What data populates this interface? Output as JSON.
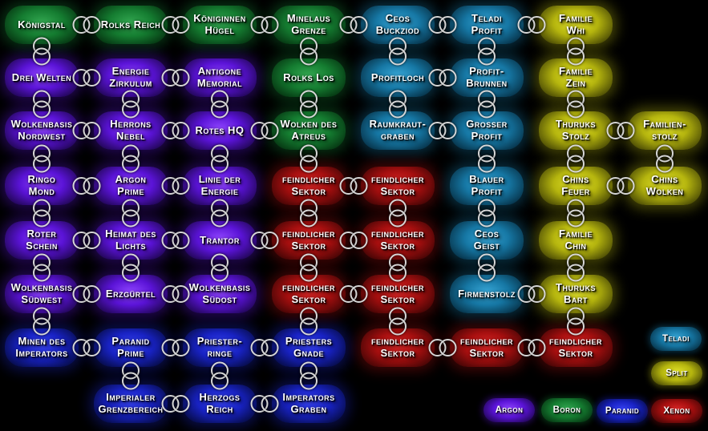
{
  "races": {
    "argon": {
      "name": "Argon",
      "bright": "#8f45ff",
      "mid": "#5a13d6",
      "dark": "#1a0545"
    },
    "boron": {
      "name": "Boron",
      "bright": "#33a851",
      "mid": "#157d31",
      "dark": "#042d0e"
    },
    "split": {
      "name": "Split",
      "bright": "#e3e32c",
      "mid": "#b5b50e",
      "dark": "#3c3c04"
    },
    "paranid": {
      "name": "Paranid",
      "bright": "#3743f5",
      "mid": "#1822c2",
      "dark": "#040938"
    },
    "teladi": {
      "name": "Teladi",
      "bright": "#37a6d6",
      "mid": "#1677a4",
      "dark": "#052a3d"
    },
    "xenon": {
      "name": "Xenon",
      "bright": "#db2828",
      "mid": "#a60f0f",
      "dark": "#380404"
    }
  },
  "sectors": [
    {
      "id": "koenigstal",
      "name": "Königstal",
      "lines": [
        "Königstal"
      ],
      "race": "boron",
      "row": 1,
      "col": 1
    },
    {
      "id": "rolks-reich",
      "name": "Rolks Reich",
      "lines": [
        "Rolks Reich"
      ],
      "race": "boron",
      "row": 1,
      "col": 2
    },
    {
      "id": "koeniginnen-huegel",
      "name": "Königinnen Hügel",
      "lines": [
        "Königinnen",
        "Hügel"
      ],
      "race": "boron",
      "row": 1,
      "col": 3
    },
    {
      "id": "minelaus-grenze",
      "name": "Minelaus Grenze",
      "lines": [
        "Minelaus",
        "Grenze"
      ],
      "race": "boron",
      "row": 1,
      "col": 4
    },
    {
      "id": "ceos-buckziod",
      "name": "Ceos Buckziod",
      "lines": [
        "Ceos",
        "Buckziod"
      ],
      "race": "teladi",
      "row": 1,
      "col": 5
    },
    {
      "id": "teladi-profit",
      "name": "Teladi Profit",
      "lines": [
        "Teladi",
        "Profit"
      ],
      "race": "teladi",
      "row": 1,
      "col": 6
    },
    {
      "id": "familie-whi",
      "name": "Familie Whi",
      "lines": [
        "Familie",
        "Whi"
      ],
      "race": "split",
      "row": 1,
      "col": 7
    },
    {
      "id": "drei-welten",
      "name": "Drei Welten",
      "lines": [
        "Drei Welten"
      ],
      "race": "argon",
      "row": 2,
      "col": 1
    },
    {
      "id": "energie-zirkulum",
      "name": "Energie Zirkulum",
      "lines": [
        "Energie",
        "Zirkulum"
      ],
      "race": "argon",
      "row": 2,
      "col": 2
    },
    {
      "id": "antigone-memorial",
      "name": "Antigone Memorial",
      "lines": [
        "Antigone",
        "Memorial"
      ],
      "race": "argon",
      "row": 2,
      "col": 3
    },
    {
      "id": "rolks-los",
      "name": "Rolks Los",
      "lines": [
        "Rolks Los"
      ],
      "race": "boron",
      "row": 2,
      "col": 4
    },
    {
      "id": "profitloch",
      "name": "Profitloch",
      "lines": [
        "Profitloch"
      ],
      "race": "teladi",
      "row": 2,
      "col": 5
    },
    {
      "id": "profit-brunnen",
      "name": "Profit-Brunnen",
      "lines": [
        "Profit-",
        "Brunnen"
      ],
      "race": "teladi",
      "row": 2,
      "col": 6
    },
    {
      "id": "familie-zein",
      "name": "Familie Zein",
      "lines": [
        "Familie",
        "Zein"
      ],
      "race": "split",
      "row": 2,
      "col": 7
    },
    {
      "id": "wolkenbasis-nordwest",
      "name": "Wolkenbasis Nordwest",
      "lines": [
        "Wolkenbasis",
        "Nordwest"
      ],
      "race": "argon",
      "row": 3,
      "col": 1
    },
    {
      "id": "herrons-nebel",
      "name": "Herrons Nebel",
      "lines": [
        "Herrons",
        "Nebel"
      ],
      "race": "argon",
      "row": 3,
      "col": 2
    },
    {
      "id": "rotes-hq",
      "name": "Rotes HQ",
      "lines": [
        "Rotes HQ"
      ],
      "race": "argon",
      "row": 3,
      "col": 3
    },
    {
      "id": "wolken-des-atreus",
      "name": "Wolken des Atreus",
      "lines": [
        "Wolken des",
        "Atreus"
      ],
      "race": "boron",
      "row": 3,
      "col": 4
    },
    {
      "id": "raumkraut-graben",
      "name": "Raumkraut-graben",
      "lines": [
        "Raumkraut-",
        "graben"
      ],
      "race": "teladi",
      "row": 3,
      "col": 5
    },
    {
      "id": "grosser-profit",
      "name": "Grosser Profit",
      "lines": [
        "Grosser",
        "Profit"
      ],
      "race": "teladi",
      "row": 3,
      "col": 6
    },
    {
      "id": "thuruks-stolz",
      "name": "Thuruks Stolz",
      "lines": [
        "Thuruks",
        "Stolz"
      ],
      "race": "split",
      "row": 3,
      "col": 7
    },
    {
      "id": "familien-stolz",
      "name": "Familien-stolz",
      "lines": [
        "Familien-",
        "stolz"
      ],
      "race": "split",
      "row": 3,
      "col": 8
    },
    {
      "id": "ringo-mond",
      "name": "Ringo Mond",
      "lines": [
        "Ringo",
        "Mond"
      ],
      "race": "argon",
      "row": 4,
      "col": 1
    },
    {
      "id": "argon-prime",
      "name": "Argon Prime",
      "lines": [
        "Argon",
        "Prime"
      ],
      "race": "argon",
      "row": 4,
      "col": 2
    },
    {
      "id": "linie-der-energie",
      "name": "Linie der Energie",
      "lines": [
        "Linie der",
        "Energie"
      ],
      "race": "argon",
      "row": 4,
      "col": 3
    },
    {
      "id": "feindlicher-sektor-1",
      "name": "feindlicher Sektor",
      "lines": [
        "feindlicher",
        "Sektor"
      ],
      "race": "xenon",
      "row": 4,
      "col": 4
    },
    {
      "id": "feindlicher-sektor-2",
      "name": "feindlicher Sektor",
      "lines": [
        "feindlicher",
        "Sektor"
      ],
      "race": "xenon",
      "row": 4,
      "col": 5
    },
    {
      "id": "blauer-profit",
      "name": "Blauer Profit",
      "lines": [
        "Blauer",
        "Profit"
      ],
      "race": "teladi",
      "row": 4,
      "col": 6
    },
    {
      "id": "chins-feuer",
      "name": "Chins Feuer",
      "lines": [
        "Chins",
        "Feuer"
      ],
      "race": "split",
      "row": 4,
      "col": 7
    },
    {
      "id": "chins-wolken",
      "name": "Chins Wolken",
      "lines": [
        "Chins",
        "Wolken"
      ],
      "race": "split",
      "row": 4,
      "col": 8
    },
    {
      "id": "roter-schein",
      "name": "Roter Schein",
      "lines": [
        "Roter",
        "Schein"
      ],
      "race": "argon",
      "row": 5,
      "col": 1
    },
    {
      "id": "heimat-des-lichts",
      "name": "Heimat des Lichts",
      "lines": [
        "Heimat des",
        "Lichts"
      ],
      "race": "argon",
      "row": 5,
      "col": 2
    },
    {
      "id": "trantor",
      "name": "Trantor",
      "lines": [
        "Trantor"
      ],
      "race": "argon",
      "row": 5,
      "col": 3
    },
    {
      "id": "feindlicher-sektor-3",
      "name": "feindlicher Sektor",
      "lines": [
        "feindlicher",
        "Sektor"
      ],
      "race": "xenon",
      "row": 5,
      "col": 4
    },
    {
      "id": "feindlicher-sektor-4",
      "name": "feindlicher Sektor",
      "lines": [
        "feindlicher",
        "Sektor"
      ],
      "race": "xenon",
      "row": 5,
      "col": 5
    },
    {
      "id": "ceos-geist",
      "name": "Ceos Geist",
      "lines": [
        "Ceos",
        "Geist"
      ],
      "race": "teladi",
      "row": 5,
      "col": 6
    },
    {
      "id": "familie-chin",
      "name": "Familie Chin",
      "lines": [
        "Familie",
        "Chin"
      ],
      "race": "split",
      "row": 5,
      "col": 7
    },
    {
      "id": "wolkenbasis-suedwest",
      "name": "Wolkenbasis Südwest",
      "lines": [
        "Wolkenbasis",
        "Südwest"
      ],
      "race": "argon",
      "row": 6,
      "col": 1
    },
    {
      "id": "erzguertel",
      "name": "Erzgürtel",
      "lines": [
        "Erzgürtel"
      ],
      "race": "argon",
      "row": 6,
      "col": 2
    },
    {
      "id": "wolkenbasis-suedost",
      "name": "Wolkenbasis Südost",
      "lines": [
        "Wolkenbasis",
        "Südost"
      ],
      "race": "argon",
      "row": 6,
      "col": 3
    },
    {
      "id": "feindlicher-sektor-5",
      "name": "feindlicher Sektor",
      "lines": [
        "feindlicher",
        "Sektor"
      ],
      "race": "xenon",
      "row": 6,
      "col": 4
    },
    {
      "id": "feindlicher-sektor-6",
      "name": "feindlicher Sektor",
      "lines": [
        "feindlicher",
        "Sektor"
      ],
      "race": "xenon",
      "row": 6,
      "col": 5
    },
    {
      "id": "firmenstolz",
      "name": "Firmenstolz",
      "lines": [
        "Firmenstolz"
      ],
      "race": "teladi",
      "row": 6,
      "col": 6
    },
    {
      "id": "thuruks-bart",
      "name": "Thuruks Bart",
      "lines": [
        "Thuruks",
        "Bart"
      ],
      "race": "split",
      "row": 6,
      "col": 7
    },
    {
      "id": "minen-des-imperators",
      "name": "Minen des Imperators",
      "lines": [
        "Minen des",
        "Imperators"
      ],
      "race": "paranid",
      "row": 7,
      "col": 1
    },
    {
      "id": "paranid-prime",
      "name": "Paranid Prime",
      "lines": [
        "Paranid",
        "Prime"
      ],
      "race": "paranid",
      "row": 7,
      "col": 2
    },
    {
      "id": "priester-ringe",
      "name": "Priester-ringe",
      "lines": [
        "Priester-",
        "ringe"
      ],
      "race": "paranid",
      "row": 7,
      "col": 3
    },
    {
      "id": "priesters-gnade",
      "name": "Priesters Gnade",
      "lines": [
        "Priesters",
        "Gnade"
      ],
      "race": "paranid",
      "row": 7,
      "col": 4
    },
    {
      "id": "feindlicher-sektor-7",
      "name": "feindlicher Sektor",
      "lines": [
        "feindlicher",
        "Sektor"
      ],
      "race": "xenon",
      "row": 7,
      "col": 5
    },
    {
      "id": "feindlicher-sektor-8",
      "name": "feindlicher Sektor",
      "lines": [
        "feindlicher",
        "Sektor"
      ],
      "race": "xenon",
      "row": 7,
      "col": 6
    },
    {
      "id": "feindlicher-sektor-9",
      "name": "feindlicher Sektor",
      "lines": [
        "feindlicher",
        "Sektor"
      ],
      "race": "xenon",
      "row": 7,
      "col": 7
    },
    {
      "id": "imperialer-grenzbereich",
      "name": "Imperialer Grenzbereich",
      "lines": [
        "Imperialer",
        "Grenzbereich"
      ],
      "race": "paranid",
      "row": 8,
      "col": 2
    },
    {
      "id": "herzogs-reich",
      "name": "Herzogs Reich",
      "lines": [
        "Herzogs",
        "Reich"
      ],
      "race": "paranid",
      "row": 8,
      "col": 3
    },
    {
      "id": "imperators-graben",
      "name": "Imperators Graben",
      "lines": [
        "Imperators",
        "Graben"
      ],
      "race": "paranid",
      "row": 8,
      "col": 4
    }
  ],
  "gates": {
    "horizontal": [
      [
        1,
        1
      ],
      [
        1,
        2
      ],
      [
        1,
        3
      ],
      [
        1,
        4
      ],
      [
        1,
        5
      ],
      [
        1,
        6
      ],
      [
        2,
        1
      ],
      [
        2,
        2
      ],
      [
        2,
        5
      ],
      [
        3,
        1
      ],
      [
        3,
        2
      ],
      [
        3,
        3
      ],
      [
        3,
        5
      ],
      [
        3,
        7
      ],
      [
        4,
        1
      ],
      [
        4,
        2
      ],
      [
        4,
        4
      ],
      [
        4,
        7
      ],
      [
        5,
        1
      ],
      [
        5,
        2
      ],
      [
        5,
        3
      ],
      [
        5,
        4
      ],
      [
        6,
        1
      ],
      [
        6,
        2
      ],
      [
        6,
        4
      ],
      [
        6,
        6
      ],
      [
        7,
        1
      ],
      [
        7,
        2
      ],
      [
        7,
        3
      ],
      [
        7,
        5
      ],
      [
        7,
        6
      ],
      [
        8,
        2
      ],
      [
        8,
        3
      ]
    ],
    "vertical": [
      [
        1,
        1
      ],
      [
        1,
        4
      ],
      [
        1,
        5
      ],
      [
        1,
        6
      ],
      [
        1,
        7
      ],
      [
        2,
        1
      ],
      [
        2,
        2
      ],
      [
        2,
        3
      ],
      [
        2,
        4
      ],
      [
        2,
        5
      ],
      [
        2,
        6
      ],
      [
        2,
        7
      ],
      [
        3,
        1
      ],
      [
        3,
        2
      ],
      [
        3,
        3
      ],
      [
        3,
        4
      ],
      [
        3,
        6
      ],
      [
        3,
        7
      ],
      [
        3,
        8
      ],
      [
        4,
        1
      ],
      [
        4,
        2
      ],
      [
        4,
        3
      ],
      [
        4,
        4
      ],
      [
        4,
        5
      ],
      [
        4,
        6
      ],
      [
        4,
        7
      ],
      [
        5,
        1
      ],
      [
        5,
        2
      ],
      [
        5,
        3
      ],
      [
        5,
        4
      ],
      [
        5,
        5
      ],
      [
        5,
        6
      ],
      [
        5,
        7
      ],
      [
        6,
        1
      ],
      [
        6,
        4
      ],
      [
        6,
        5
      ],
      [
        6,
        7
      ],
      [
        7,
        2
      ],
      [
        7,
        3
      ],
      [
        7,
        4
      ]
    ]
  },
  "legend": {
    "items": [
      {
        "id": "teladi",
        "label": "Teladi",
        "race": "teladi"
      },
      {
        "id": "split",
        "label": "Split",
        "race": "split"
      },
      {
        "id": "argon",
        "label": "Argon",
        "race": "argon"
      },
      {
        "id": "boron",
        "label": "Boron",
        "race": "boron"
      },
      {
        "id": "paranid",
        "label": "Paranid",
        "race": "paranid"
      },
      {
        "id": "xenon",
        "label": "Xenon",
        "race": "xenon"
      }
    ]
  }
}
